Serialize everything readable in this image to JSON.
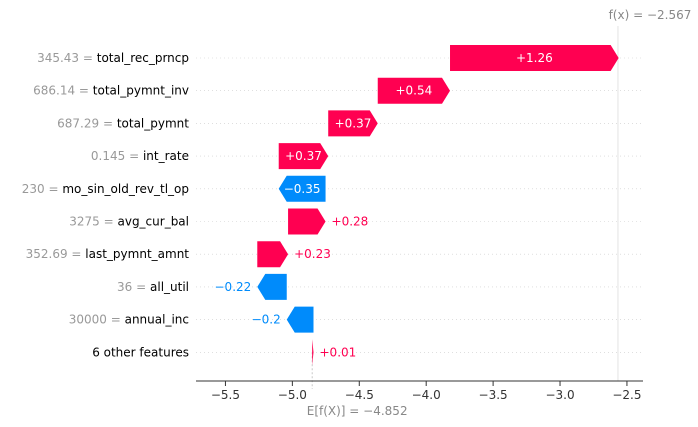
{
  "chart_data": {
    "type": "waterfall",
    "base_value": -4.852,
    "output_value": -2.567,
    "base_value_label": "E[f(X)] = −4.852",
    "output_value_label": "f(x) = −2.567",
    "xlim": [
      -5.72,
      -2.38
    ],
    "xticks": [
      -5.5,
      -5.0,
      -4.5,
      -4.0,
      -3.5,
      -3.0,
      -2.5
    ],
    "xtick_labels": [
      "−5.5",
      "−5.0",
      "−4.5",
      "−4.0",
      "−3.5",
      "−3.0",
      "−2.5"
    ],
    "colors": {
      "positive": "#ff0051",
      "negative": "#008bfb"
    },
    "features": [
      {
        "value": "345.43",
        "name": "total_rec_prncp",
        "contribution": 1.26,
        "label": "+1.26"
      },
      {
        "value": "686.14",
        "name": "total_pymnt_inv",
        "contribution": 0.54,
        "label": "+0.54"
      },
      {
        "value": "687.29",
        "name": "total_pymnt",
        "contribution": 0.37,
        "label": "+0.37"
      },
      {
        "value": "0.145",
        "name": "int_rate",
        "contribution": 0.37,
        "label": "+0.37"
      },
      {
        "value": "230",
        "name": "mo_sin_old_rev_tl_op",
        "contribution": -0.35,
        "label": "−0.35"
      },
      {
        "value": "3275",
        "name": "avg_cur_bal",
        "contribution": 0.28,
        "label": "+0.28"
      },
      {
        "value": "352.69",
        "name": "last_pymnt_amnt",
        "contribution": 0.23,
        "label": "+0.23"
      },
      {
        "value": "36",
        "name": "all_util",
        "contribution": -0.22,
        "label": "−0.22"
      },
      {
        "value": "30000",
        "name": "annual_inc",
        "contribution": -0.2,
        "label": "−0.2"
      },
      {
        "value": "",
        "name": "6 other features",
        "contribution": 0.01,
        "label": "+0.01"
      }
    ]
  }
}
